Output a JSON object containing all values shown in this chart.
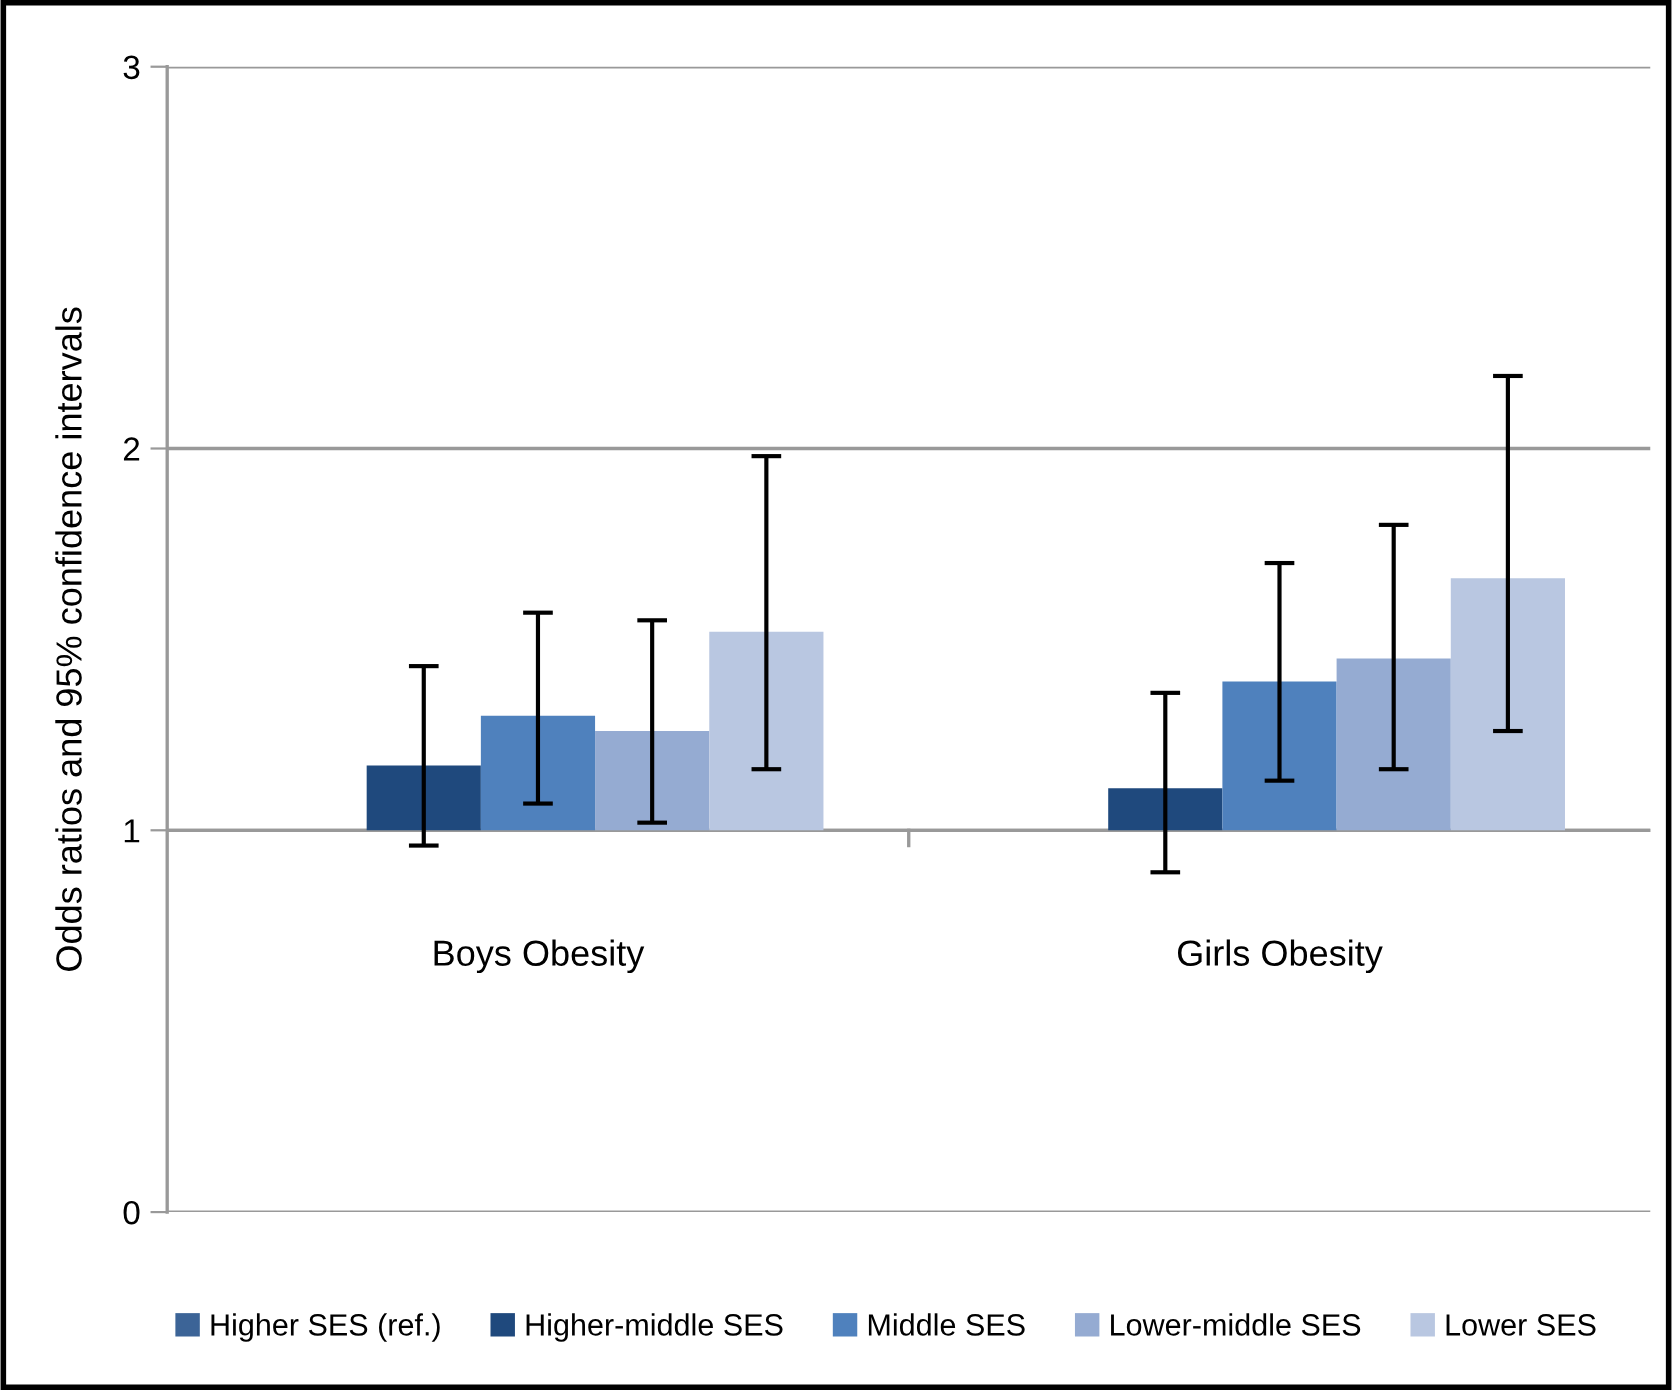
{
  "chart_data": {
    "type": "bar",
    "ylabel": "Odds ratios and 95% confidence intervals",
    "categories": [
      "Boys Obesity",
      "Girls Obesity"
    ],
    "series": [
      {
        "name": "Higher SES (ref.)",
        "color": "#3c6497",
        "values": [
          null,
          null
        ]
      },
      {
        "name": "Higher-middle SES",
        "color": "#1f497d",
        "values": [
          0.17,
          0.11
        ],
        "base": [
          1,
          1
        ],
        "errors": [
          [
            0.96,
            1.43
          ],
          [
            0.89,
            1.36
          ]
        ]
      },
      {
        "name": "Middle SES",
        "color": "#4f81bd",
        "values": [
          0.3,
          0.39
        ],
        "base": [
          1,
          1
        ],
        "errors": [
          [
            1.07,
            1.57
          ],
          [
            1.13,
            1.7
          ]
        ]
      },
      {
        "name": "Lower-middle SES",
        "color": "#95abd2",
        "values": [
          0.26,
          0.45
        ],
        "base": [
          1,
          1
        ],
        "errors": [
          [
            1.02,
            1.55
          ],
          [
            1.16,
            1.8
          ]
        ]
      },
      {
        "name": "Lower SES",
        "color": "#b9c7e1",
        "values": [
          0.52,
          0.66
        ],
        "base": [
          1,
          1
        ],
        "errors": [
          [
            1.16,
            1.98
          ],
          [
            1.26,
            2.19
          ]
        ]
      }
    ],
    "ylim": [
      0,
      3
    ],
    "yticks": [
      0,
      1,
      2,
      3
    ],
    "grid": "y",
    "legend": "bottom"
  }
}
